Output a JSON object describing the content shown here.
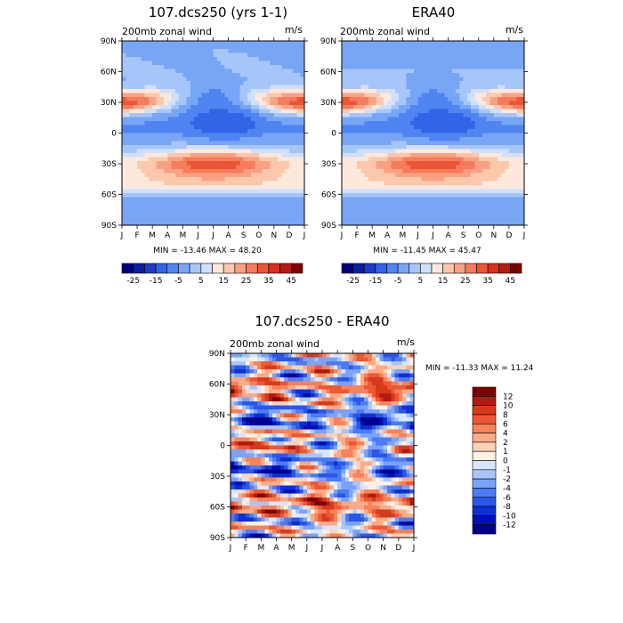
{
  "chart_data": [
    {
      "type": "heatmap",
      "title": "107.dcs250 (yrs 1-1)",
      "subtitle_left": "200mb zonal wind",
      "subtitle_right": "m/s",
      "stats": "MIN = -13.46 MAX =  48.20",
      "x_ticks": [
        "J",
        "F",
        "M",
        "A",
        "M",
        "J",
        "J",
        "A",
        "S",
        "O",
        "N",
        "D",
        "J"
      ],
      "y_ticks": [
        "90N",
        "60N",
        "30N",
        "0",
        "30S",
        "60S",
        "90S"
      ],
      "colorbar_labels": [
        "-25",
        "-15",
        "-5",
        "5",
        "15",
        "25",
        "35",
        "45"
      ],
      "levels": [
        -30,
        -25,
        -20,
        -15,
        -10,
        -5,
        0,
        5,
        10,
        15,
        20,
        25,
        30,
        35,
        40,
        45,
        50
      ]
    },
    {
      "type": "heatmap",
      "title": "ERA40",
      "subtitle_left": "200mb zonal wind",
      "subtitle_right": "m/s",
      "stats": "MIN = -11.45 MAX =  45.47",
      "x_ticks": [
        "J",
        "F",
        "M",
        "A",
        "M",
        "J",
        "J",
        "A",
        "S",
        "O",
        "N",
        "D",
        "J"
      ],
      "y_ticks": [
        "90N",
        "60N",
        "30N",
        "0",
        "30S",
        "60S",
        "90S"
      ],
      "colorbar_labels": [
        "-25",
        "-15",
        "-5",
        "5",
        "15",
        "25",
        "35",
        "45"
      ],
      "levels": [
        -30,
        -25,
        -20,
        -15,
        -10,
        -5,
        0,
        5,
        10,
        15,
        20,
        25,
        30,
        35,
        40,
        45,
        50
      ]
    },
    {
      "type": "heatmap",
      "title": "107.dcs250 - ERA40",
      "subtitle_left": "200mb zonal wind",
      "subtitle_right": "m/s",
      "stats": "MIN = -11.33 MAX =  11.24",
      "x_ticks": [
        "J",
        "F",
        "M",
        "A",
        "M",
        "J",
        "J",
        "A",
        "S",
        "O",
        "N",
        "D",
        "J"
      ],
      "y_ticks": [
        "90N",
        "60N",
        "30N",
        "0",
        "30S",
        "60S",
        "90S"
      ],
      "colorbar_labels": [
        "12",
        "10",
        "8",
        "6",
        "4",
        "2",
        "1",
        "0",
        "-1",
        "-2",
        "-4",
        "-6",
        "-8",
        "-10",
        "-12"
      ],
      "levels": [
        -14,
        -12,
        -10,
        -8,
        -6,
        -4,
        -2,
        -1,
        0,
        1,
        2,
        4,
        6,
        8,
        10,
        12,
        14
      ]
    }
  ],
  "palettes": {
    "wind": [
      "#000080",
      "#0a1e9e",
      "#1e3cc8",
      "#3264e6",
      "#5084f0",
      "#78a6f6",
      "#a6c6fa",
      "#cfe0fc",
      "#fde9dc",
      "#fcc8ac",
      "#f9a283",
      "#f67c5c",
      "#eb5536",
      "#d7301f",
      "#b51a14",
      "#7f0000"
    ],
    "diff": [
      "#00008c",
      "#0010b4",
      "#0c30d2",
      "#2a56ea",
      "#4c7cf4",
      "#7aa2f8",
      "#a9c6fc",
      "#d9e6fe",
      "#fff2e4",
      "#fdd2b6",
      "#fbab86",
      "#f7825c",
      "#ef5734",
      "#d63a1c",
      "#b01a10",
      "#800000"
    ]
  }
}
